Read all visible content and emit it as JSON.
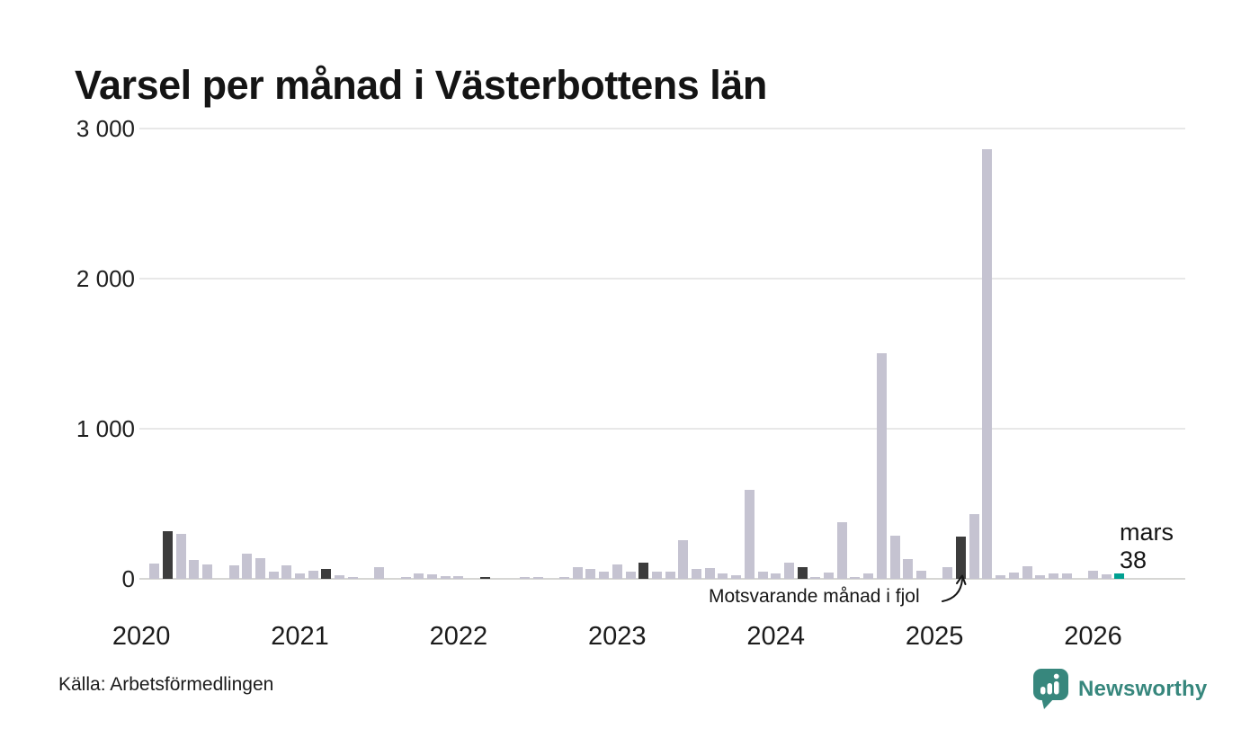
{
  "header": {
    "title": "Varsel per månad i Västerbottens län"
  },
  "footer": {
    "source": "Källa: Arbetsförmedlingen",
    "brand": "Newsworthy"
  },
  "colors": {
    "bar_normal": "#c5c3d1",
    "bar_prev_march": "#3c3c3c",
    "bar_current": "#00a091",
    "brand_teal": "#37877d",
    "grid": "#e8e8e8",
    "axis": "#d6d6d4"
  },
  "chart_data": {
    "type": "bar",
    "title": "Varsel per månad i Västerbottens län",
    "xlabel": "",
    "ylabel": "",
    "ylim": [
      0,
      3000
    ],
    "yticks": [
      0,
      1000,
      2000,
      3000
    ],
    "ytick_labels": [
      "0",
      "1 000",
      "2 000",
      "3 000"
    ],
    "xticks": [
      {
        "label": "2020",
        "month_index": 0
      },
      {
        "label": "2021",
        "month_index": 12
      },
      {
        "label": "2022",
        "month_index": 24
      },
      {
        "label": "2023",
        "month_index": 36
      },
      {
        "label": "2024",
        "month_index": 48
      },
      {
        "label": "2025",
        "month_index": 60
      },
      {
        "label": "2026",
        "month_index": 72
      }
    ],
    "grid": "horizontal",
    "legend": "off",
    "annotation": "Motsvarande månad i fjol",
    "annotation_target_month": "2025-03",
    "current_month": {
      "month": "2026-03",
      "label": "mars",
      "value": 38
    },
    "series_name": "Varsel per månad",
    "series": [
      {
        "month": "2020-01",
        "value": 0
      },
      {
        "month": "2020-02",
        "value": 100
      },
      {
        "month": "2020-03",
        "value": 320,
        "role": "prev_year_month"
      },
      {
        "month": "2020-04",
        "value": 300
      },
      {
        "month": "2020-05",
        "value": 125
      },
      {
        "month": "2020-06",
        "value": 95
      },
      {
        "month": "2020-07",
        "value": 0
      },
      {
        "month": "2020-08",
        "value": 90
      },
      {
        "month": "2020-09",
        "value": 165
      },
      {
        "month": "2020-10",
        "value": 140
      },
      {
        "month": "2020-11",
        "value": 50
      },
      {
        "month": "2020-12",
        "value": 90
      },
      {
        "month": "2021-01",
        "value": 35
      },
      {
        "month": "2021-02",
        "value": 55
      },
      {
        "month": "2021-03",
        "value": 65,
        "role": "prev_year_month"
      },
      {
        "month": "2021-04",
        "value": 25
      },
      {
        "month": "2021-05",
        "value": 12
      },
      {
        "month": "2021-06",
        "value": 0
      },
      {
        "month": "2021-07",
        "value": 75
      },
      {
        "month": "2021-08",
        "value": 0
      },
      {
        "month": "2021-09",
        "value": 12
      },
      {
        "month": "2021-10",
        "value": 35
      },
      {
        "month": "2021-11",
        "value": 30
      },
      {
        "month": "2021-12",
        "value": 18
      },
      {
        "month": "2022-01",
        "value": 18
      },
      {
        "month": "2022-02",
        "value": 0
      },
      {
        "month": "2022-03",
        "value": 8,
        "role": "prev_year_month"
      },
      {
        "month": "2022-04",
        "value": 0
      },
      {
        "month": "2022-05",
        "value": 0
      },
      {
        "month": "2022-06",
        "value": 12
      },
      {
        "month": "2022-07",
        "value": 12
      },
      {
        "month": "2022-08",
        "value": 0
      },
      {
        "month": "2022-09",
        "value": 12
      },
      {
        "month": "2022-10",
        "value": 78
      },
      {
        "month": "2022-11",
        "value": 66
      },
      {
        "month": "2022-12",
        "value": 48
      },
      {
        "month": "2023-01",
        "value": 95
      },
      {
        "month": "2023-02",
        "value": 48
      },
      {
        "month": "2023-03",
        "value": 110,
        "role": "prev_year_month"
      },
      {
        "month": "2023-04",
        "value": 48
      },
      {
        "month": "2023-05",
        "value": 46
      },
      {
        "month": "2023-06",
        "value": 260
      },
      {
        "month": "2023-07",
        "value": 66
      },
      {
        "month": "2023-08",
        "value": 70
      },
      {
        "month": "2023-09",
        "value": 36
      },
      {
        "month": "2023-10",
        "value": 26
      },
      {
        "month": "2023-11",
        "value": 590
      },
      {
        "month": "2023-12",
        "value": 48
      },
      {
        "month": "2024-01",
        "value": 36
      },
      {
        "month": "2024-02",
        "value": 110
      },
      {
        "month": "2024-03",
        "value": 75,
        "role": "prev_year_month"
      },
      {
        "month": "2024-04",
        "value": 15
      },
      {
        "month": "2024-05",
        "value": 45
      },
      {
        "month": "2024-06",
        "value": 380
      },
      {
        "month": "2024-07",
        "value": 15
      },
      {
        "month": "2024-08",
        "value": 35
      },
      {
        "month": "2024-09",
        "value": 1505
      },
      {
        "month": "2024-10",
        "value": 290
      },
      {
        "month": "2024-11",
        "value": 130
      },
      {
        "month": "2024-12",
        "value": 55
      },
      {
        "month": "2025-01",
        "value": 0
      },
      {
        "month": "2025-02",
        "value": 75
      },
      {
        "month": "2025-03",
        "value": 280,
        "role": "prev_year_month"
      },
      {
        "month": "2025-04",
        "value": 430
      },
      {
        "month": "2025-05",
        "value": 2860
      },
      {
        "month": "2025-06",
        "value": 25
      },
      {
        "month": "2025-07",
        "value": 45
      },
      {
        "month": "2025-08",
        "value": 84
      },
      {
        "month": "2025-09",
        "value": 25
      },
      {
        "month": "2025-10",
        "value": 35
      },
      {
        "month": "2025-11",
        "value": 35
      },
      {
        "month": "2025-12",
        "value": 0
      },
      {
        "month": "2026-01",
        "value": 55
      },
      {
        "month": "2026-02",
        "value": 30
      },
      {
        "month": "2026-03",
        "value": 38,
        "role": "current"
      }
    ]
  }
}
